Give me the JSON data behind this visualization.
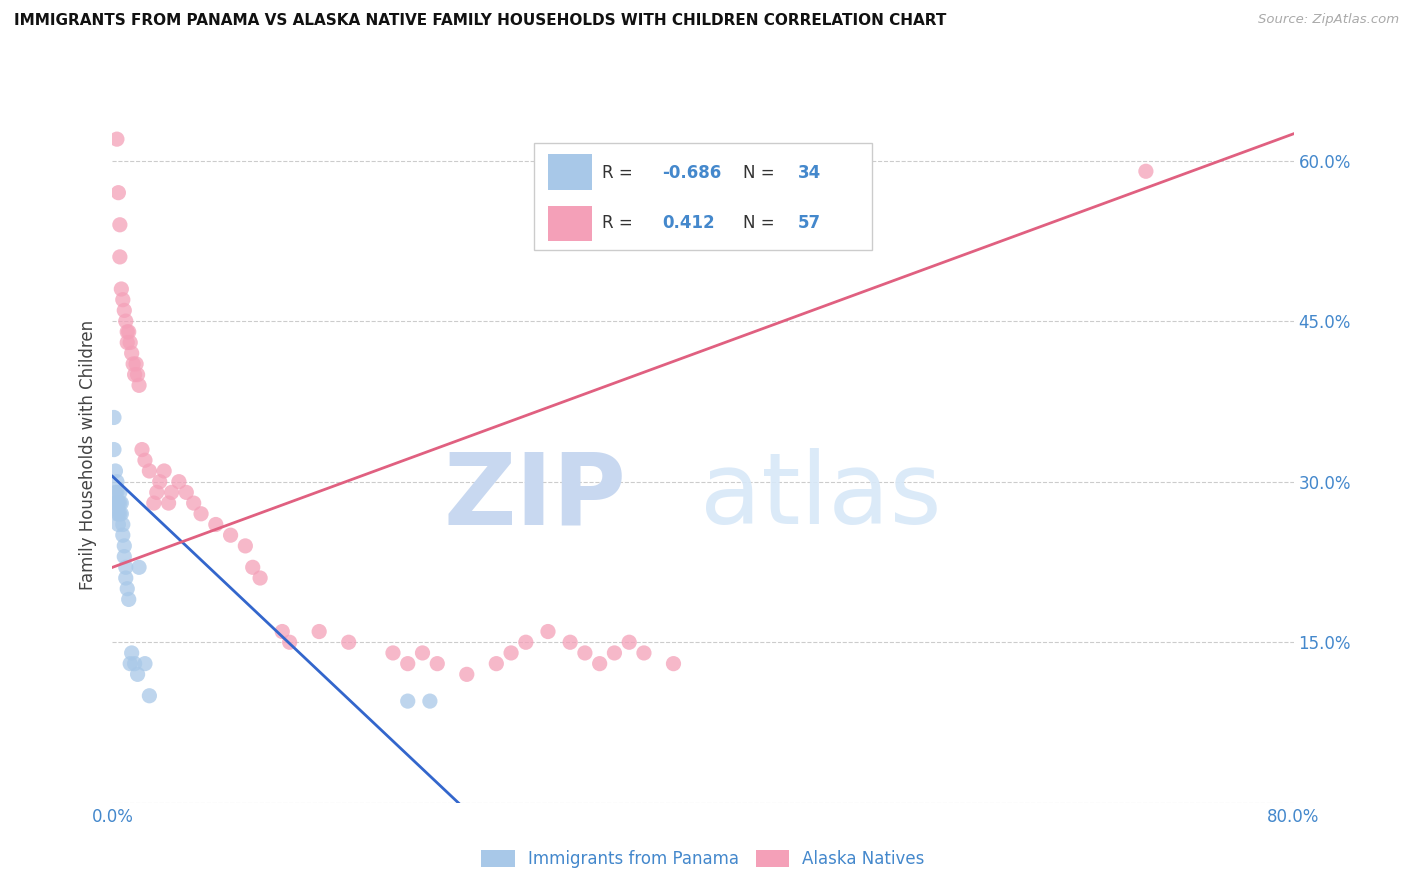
{
  "title": "IMMIGRANTS FROM PANAMA VS ALASKA NATIVE FAMILY HOUSEHOLDS WITH CHILDREN CORRELATION CHART",
  "source": "Source: ZipAtlas.com",
  "ylabel": "Family Households with Children",
  "color_blue": "#a8c8e8",
  "color_pink": "#f4a0b8",
  "color_blue_line": "#3366cc",
  "color_pink_line": "#e06080",
  "color_text_blue": "#4488cc",
  "watermark_zip": "ZIP",
  "watermark_atlas": "atlas",
  "legend_label1": "Immigrants from Panama",
  "legend_label2": "Alaska Natives",
  "blue_scatter_x": [
    0.001,
    0.001,
    0.002,
    0.002,
    0.002,
    0.003,
    0.003,
    0.003,
    0.003,
    0.004,
    0.004,
    0.004,
    0.005,
    0.005,
    0.005,
    0.006,
    0.006,
    0.007,
    0.007,
    0.008,
    0.008,
    0.009,
    0.009,
    0.01,
    0.011,
    0.012,
    0.013,
    0.015,
    0.017,
    0.018,
    0.022,
    0.025,
    0.2,
    0.215
  ],
  "blue_scatter_y": [
    0.36,
    0.33,
    0.31,
    0.29,
    0.28,
    0.3,
    0.29,
    0.28,
    0.27,
    0.28,
    0.27,
    0.26,
    0.29,
    0.28,
    0.27,
    0.28,
    0.27,
    0.26,
    0.25,
    0.24,
    0.23,
    0.22,
    0.21,
    0.2,
    0.19,
    0.13,
    0.14,
    0.13,
    0.12,
    0.22,
    0.13,
    0.1,
    0.095,
    0.095
  ],
  "pink_scatter_x": [
    0.003,
    0.004,
    0.005,
    0.005,
    0.006,
    0.007,
    0.008,
    0.009,
    0.01,
    0.01,
    0.011,
    0.012,
    0.013,
    0.014,
    0.015,
    0.016,
    0.017,
    0.018,
    0.02,
    0.022,
    0.025,
    0.028,
    0.03,
    0.032,
    0.035,
    0.038,
    0.04,
    0.045,
    0.05,
    0.055,
    0.06,
    0.07,
    0.08,
    0.09,
    0.095,
    0.1,
    0.115,
    0.12,
    0.14,
    0.16,
    0.19,
    0.2,
    0.21,
    0.22,
    0.24,
    0.26,
    0.27,
    0.28,
    0.295,
    0.31,
    0.32,
    0.33,
    0.34,
    0.35,
    0.36,
    0.38,
    0.7
  ],
  "pink_scatter_y": [
    0.62,
    0.57,
    0.54,
    0.51,
    0.48,
    0.47,
    0.46,
    0.45,
    0.44,
    0.43,
    0.44,
    0.43,
    0.42,
    0.41,
    0.4,
    0.41,
    0.4,
    0.39,
    0.33,
    0.32,
    0.31,
    0.28,
    0.29,
    0.3,
    0.31,
    0.28,
    0.29,
    0.3,
    0.29,
    0.28,
    0.27,
    0.26,
    0.25,
    0.24,
    0.22,
    0.21,
    0.16,
    0.15,
    0.16,
    0.15,
    0.14,
    0.13,
    0.14,
    0.13,
    0.12,
    0.13,
    0.14,
    0.15,
    0.16,
    0.15,
    0.14,
    0.13,
    0.14,
    0.15,
    0.14,
    0.13,
    0.59
  ],
  "blue_line_x": [
    0.0,
    0.265
  ],
  "blue_line_y": [
    0.305,
    -0.04
  ],
  "pink_line_x": [
    0.0,
    0.8
  ],
  "pink_line_y": [
    0.22,
    0.625
  ],
  "xlim": [
    0.0,
    0.8
  ],
  "ylim": [
    0.0,
    0.65
  ],
  "x_tick_positions": [
    0.0,
    0.1,
    0.2,
    0.3,
    0.4,
    0.5,
    0.6,
    0.7,
    0.8
  ],
  "x_tick_labels": [
    "0.0%",
    "",
    "",
    "",
    "",
    "",
    "",
    "",
    "80.0%"
  ],
  "y_tick_positions": [
    0.0,
    0.15,
    0.3,
    0.45,
    0.6
  ],
  "y_tick_labels_right": [
    "",
    "15.0%",
    "30.0%",
    "45.0%",
    "60.0%"
  ]
}
